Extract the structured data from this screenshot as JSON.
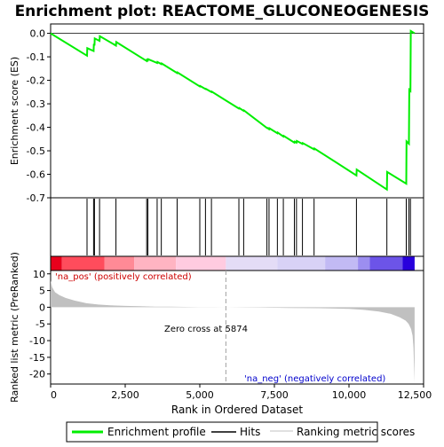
{
  "title": "Enrichment plot: REACTOME_GLUCONEOGENESIS",
  "colors": {
    "profile": "#00ee00",
    "hits": "#000000",
    "metric_fill": "#c0c0c0",
    "pos_text": "#cc0000",
    "neg_text": "#0000cc",
    "zero_line": "#a0a0a0",
    "band_red": "#e8001c",
    "band_blue": "#2800dc"
  },
  "chart_data": [
    {
      "type": "line",
      "name": "enrichment-profile-panel",
      "ylabel": "Enrichment score (ES)",
      "xlim": [
        0,
        12500
      ],
      "ylim": [
        -0.7,
        0.04
      ],
      "yticks": [
        0.0,
        -0.1,
        -0.2,
        -0.3,
        -0.4,
        -0.5,
        -0.6,
        -0.7
      ],
      "ytick_labels": [
        "0.0",
        "-0.1",
        "-0.2",
        "-0.3",
        "-0.4",
        "-0.5",
        "-0.6",
        "-0.7"
      ],
      "series": [
        {
          "name": "Enrichment profile",
          "x": [
            0,
            1220,
            1230,
            1440,
            1450,
            1470,
            1480,
            1640,
            1650,
            2190,
            2200,
            3220,
            3230,
            3260,
            3270,
            3570,
            3580,
            3710,
            3720,
            4240,
            4250,
            5000,
            5010,
            5190,
            5200,
            5390,
            5400,
            6310,
            6320,
            6470,
            6480,
            7250,
            7260,
            7320,
            7330,
            7600,
            7610,
            7800,
            7810,
            8170,
            8180,
            8240,
            8250,
            8440,
            8450,
            8830,
            8840,
            10250,
            10260,
            11270,
            11280,
            11920,
            11930,
            12010,
            12020,
            12060,
            12070,
            12200
          ],
          "y": [
            0.0,
            -0.095,
            -0.063,
            -0.075,
            -0.045,
            -0.052,
            -0.022,
            -0.032,
            -0.012,
            -0.052,
            -0.037,
            -0.118,
            -0.112,
            -0.115,
            -0.11,
            -0.126,
            -0.122,
            -0.131,
            -0.128,
            -0.169,
            -0.166,
            -0.226,
            -0.224,
            -0.237,
            -0.236,
            -0.25,
            -0.248,
            -0.32,
            -0.318,
            -0.33,
            -0.328,
            -0.403,
            -0.402,
            -0.408,
            -0.404,
            -0.425,
            -0.422,
            -0.439,
            -0.436,
            -0.465,
            -0.461,
            -0.465,
            -0.458,
            -0.471,
            -0.467,
            -0.494,
            -0.49,
            -0.605,
            -0.58,
            -0.665,
            -0.59,
            -0.64,
            -0.46,
            -0.47,
            -0.24,
            -0.245,
            0.01,
            0.0
          ]
        }
      ]
    },
    {
      "type": "scatter",
      "name": "hits-panel",
      "series": [
        {
          "name": "Hits",
          "x": [
            1220,
            1440,
            1470,
            1640,
            2190,
            3220,
            3260,
            3570,
            3710,
            4240,
            5000,
            5190,
            5390,
            6310,
            6470,
            7250,
            7320,
            7600,
            7800,
            8170,
            8240,
            8440,
            8830,
            10250,
            11270,
            11920,
            12010,
            12060
          ]
        }
      ]
    },
    {
      "type": "area",
      "name": "ranked-metric-panel",
      "xlabel": "Rank in Ordered Dataset",
      "ylabel": "Ranked list metric (PreRanked)",
      "xlim": [
        0,
        12500
      ],
      "ylim": [
        -23,
        11
      ],
      "xticks": [
        0,
        2500,
        5000,
        7500,
        10000,
        12500
      ],
      "xtick_labels": [
        "0",
        "2,500",
        "5,000",
        "7,500",
        "10,000",
        "12,500"
      ],
      "yticks": [
        10,
        5,
        0,
        -5,
        -10,
        -15,
        -20
      ],
      "ytick_labels": [
        "10",
        "5",
        "0",
        "-5",
        "-10",
        "-15",
        "-20"
      ],
      "series": [
        {
          "name": "Ranking metric scores",
          "x": [
            0,
            50,
            150,
            300,
            500,
            800,
            1200,
            1600,
            2000,
            2500,
            3000,
            3500,
            4000,
            4500,
            5000,
            5500,
            5874,
            6500,
            7000,
            8000,
            9000,
            10000,
            10500,
            11000,
            11400,
            11700,
            11900,
            12000,
            12080,
            12130,
            12160,
            12180,
            12200
          ],
          "y": [
            8.0,
            6.0,
            4.5,
            3.6,
            2.8,
            2.0,
            1.2,
            0.8,
            0.55,
            0.4,
            0.3,
            0.2,
            0.15,
            0.1,
            0.05,
            0.02,
            0.0,
            -0.05,
            -0.1,
            -0.2,
            -0.3,
            -0.5,
            -0.8,
            -1.3,
            -2.0,
            -3.0,
            -4.0,
            -5.0,
            -6.5,
            -8.5,
            -12.0,
            -17.0,
            -22.5
          ]
        }
      ],
      "annotations": [
        "'na_pos' (positively correlated)",
        "Zero cross at 5874",
        "'na_neg' (negatively correlated)"
      ]
    }
  ],
  "band": {
    "segments": [
      {
        "from": 0,
        "to": 380,
        "color": "#e8001c"
      },
      {
        "from": 380,
        "to": 1800,
        "color": "#ff4c5c"
      },
      {
        "from": 1800,
        "to": 2800,
        "color": "#ff8a96"
      },
      {
        "from": 2800,
        "to": 4200,
        "color": "#ffb4c2"
      },
      {
        "from": 4200,
        "to": 5874,
        "color": "#ffcbe0"
      },
      {
        "from": 5874,
        "to": 7600,
        "color": "#e4dcf6"
      },
      {
        "from": 7600,
        "to": 9200,
        "color": "#d8d2f6"
      },
      {
        "from": 9200,
        "to": 10300,
        "color": "#c2baf4"
      },
      {
        "from": 10300,
        "to": 10700,
        "color": "#9c8ef0"
      },
      {
        "from": 10700,
        "to": 11800,
        "color": "#6c54e8"
      },
      {
        "from": 11800,
        "to": 12200,
        "color": "#2800dc"
      }
    ]
  },
  "legend": {
    "items": [
      {
        "label": "Enrichment profile",
        "swatch": "line-green"
      },
      {
        "label": "Hits",
        "swatch": "line-black"
      },
      {
        "label": "Ranking metric scores",
        "swatch": "line-gray"
      }
    ]
  }
}
